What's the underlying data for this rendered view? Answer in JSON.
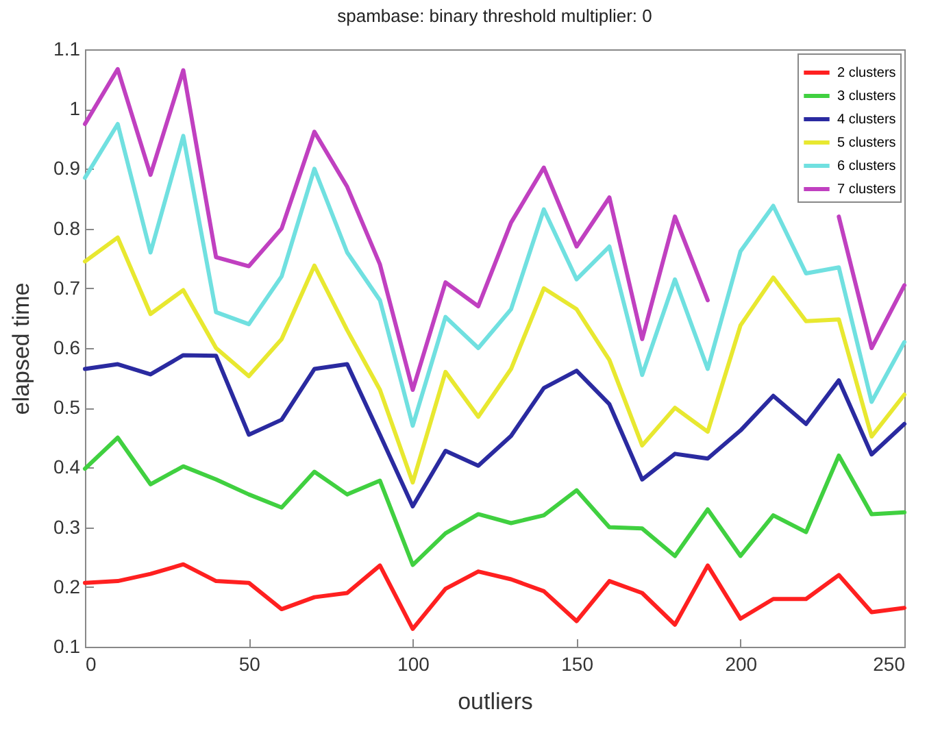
{
  "chart_data": {
    "type": "line",
    "title": "spambase: binary threshold multiplier: 0",
    "xlabel": "outliers",
    "ylabel": "elapsed time",
    "x": [
      0,
      10,
      20,
      30,
      40,
      50,
      60,
      70,
      80,
      90,
      100,
      110,
      120,
      130,
      140,
      150,
      160,
      170,
      180,
      190,
      200,
      210,
      220,
      230,
      240,
      250
    ],
    "series": [
      {
        "name": "2 clusters",
        "color": "#ff2020",
        "values": [
          0.207,
          0.21,
          0.222,
          0.238,
          0.21,
          0.207,
          0.163,
          0.183,
          0.19,
          0.236,
          0.13,
          0.197,
          0.226,
          0.213,
          0.193,
          0.143,
          0.21,
          0.19,
          0.137,
          0.236,
          0.147,
          0.18,
          0.18,
          0.22,
          0.158,
          0.165
        ]
      },
      {
        "name": "3 clusters",
        "color": "#40d040",
        "values": [
          0.398,
          0.45,
          0.372,
          0.402,
          0.38,
          0.355,
          0.333,
          0.393,
          0.355,
          0.378,
          0.237,
          0.29,
          0.322,
          0.307,
          0.32,
          0.362,
          0.3,
          0.298,
          0.252,
          0.33,
          0.252,
          0.32,
          0.292,
          0.42,
          0.322,
          0.325
        ]
      },
      {
        "name": "4 clusters",
        "color": "#2a2aa0",
        "values": [
          0.565,
          0.573,
          0.556,
          0.588,
          0.587,
          0.455,
          0.48,
          0.565,
          0.573,
          0.455,
          0.335,
          0.428,
          0.403,
          0.453,
          0.533,
          0.562,
          0.506,
          0.38,
          0.423,
          0.415,
          0.462,
          0.52,
          0.473,
          0.546,
          0.422,
          0.473
        ]
      },
      {
        "name": "5 clusters",
        "color": "#e8e830",
        "values": [
          0.745,
          0.785,
          0.657,
          0.697,
          0.6,
          0.553,
          0.615,
          0.738,
          0.63,
          0.53,
          0.375,
          0.56,
          0.485,
          0.565,
          0.7,
          0.665,
          0.58,
          0.437,
          0.5,
          0.46,
          0.638,
          0.718,
          0.645,
          0.648,
          0.452,
          0.522
        ]
      },
      {
        "name": "6 clusters",
        "color": "#70e0e0",
        "values": [
          0.885,
          0.975,
          0.76,
          0.955,
          0.66,
          0.64,
          0.72,
          0.9,
          0.76,
          0.68,
          0.47,
          0.652,
          0.6,
          0.665,
          0.832,
          0.715,
          0.77,
          0.555,
          0.715,
          0.565,
          0.762,
          0.838,
          0.725,
          0.735,
          0.51,
          0.61
        ]
      },
      {
        "name": "7 clusters",
        "color": "#c040c0",
        "values": [
          0.975,
          1.067,
          0.89,
          1.065,
          0.752,
          0.737,
          0.8,
          0.962,
          0.87,
          0.74,
          0.53,
          0.71,
          0.67,
          0.81,
          0.902,
          0.77,
          0.852,
          0.615,
          0.82,
          0.68,
          null,
          null,
          null,
          0.82,
          0.6,
          0.705
        ]
      }
    ],
    "xlim": [
      0,
      250
    ],
    "xticks": [
      0,
      50,
      100,
      150,
      200,
      250
    ],
    "ylim": [
      0.1,
      1.1
    ],
    "yticks": [
      0.1,
      0.2,
      0.3,
      0.4,
      0.5,
      0.6,
      0.7,
      0.8,
      0.9,
      1,
      1.1
    ],
    "legend": "top right",
    "grid": false,
    "marker": "none",
    "line_style": "solid"
  }
}
